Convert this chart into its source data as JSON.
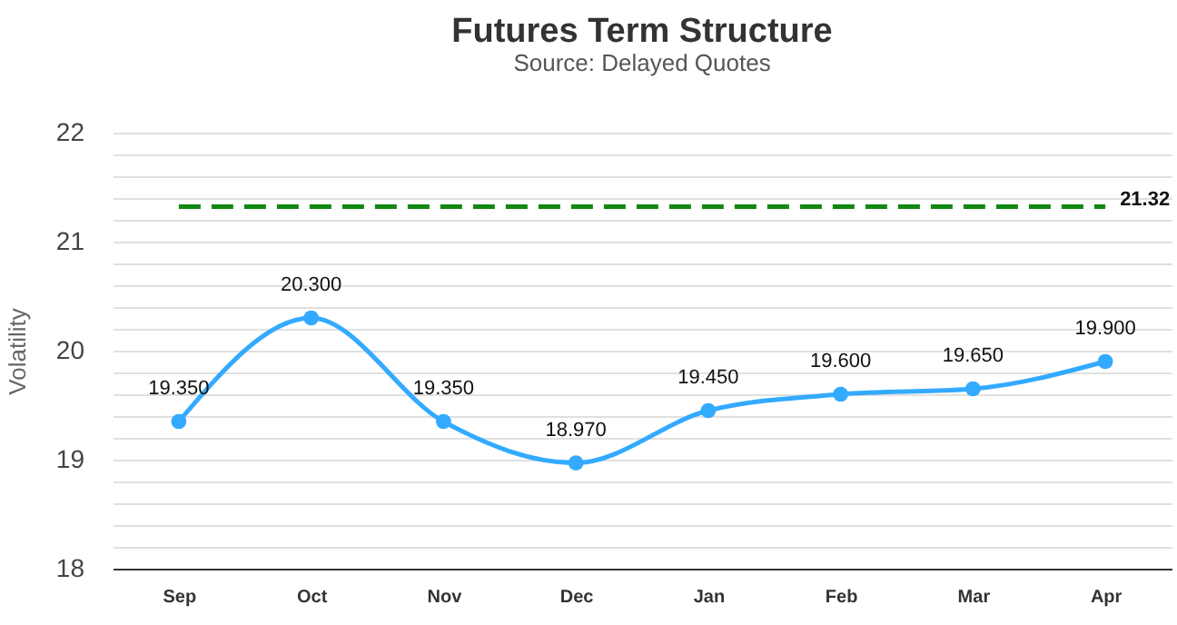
{
  "chart_data": {
    "type": "line",
    "title": "Futures Term Structure",
    "subtitle": "Source: Delayed Quotes",
    "ylabel": "Volatility",
    "categories": [
      "Sep",
      "Oct",
      "Nov",
      "Dec",
      "Jan",
      "Feb",
      "Mar",
      "Apr"
    ],
    "series": [
      {
        "color": "#33aaff",
        "values": [
          19.35,
          20.3,
          19.35,
          18.97,
          19.45,
          19.6,
          19.65,
          19.9
        ],
        "value_labels": [
          "19.350",
          "20.300",
          "19.350",
          "18.970",
          "19.450",
          "19.600",
          "19.650",
          "19.900"
        ]
      }
    ],
    "ylim": [
      18,
      22
    ],
    "yticks": [
      18,
      {
        "value": 18.2,
        "label": null
      },
      {
        "value": 18.4,
        "label": null
      },
      {
        "value": 18.6,
        "label": null
      },
      {
        "value": 18.8,
        "label": null
      },
      19,
      {
        "value": 19.2,
        "label": null
      },
      {
        "value": 19.4,
        "label": null
      },
      {
        "value": 19.6,
        "label": null
      },
      {
        "value": 19.8,
        "label": null
      },
      20,
      {
        "value": 20.2,
        "label": null
      },
      {
        "value": 20.4,
        "label": null
      },
      {
        "value": 20.6,
        "label": null
      },
      {
        "value": 20.8,
        "label": null
      },
      21,
      {
        "value": 21.2,
        "label": null
      },
      {
        "value": 21.4,
        "label": null
      },
      {
        "value": 21.6,
        "label": null
      },
      {
        "value": 21.8,
        "label": null
      },
      22
    ],
    "ref_lines": [
      {
        "axis": "y",
        "value": 21.32,
        "label": "21.32",
        "color": "#118811",
        "line_style": "dashed"
      }
    ],
    "grid": "y",
    "marker": "circle"
  }
}
